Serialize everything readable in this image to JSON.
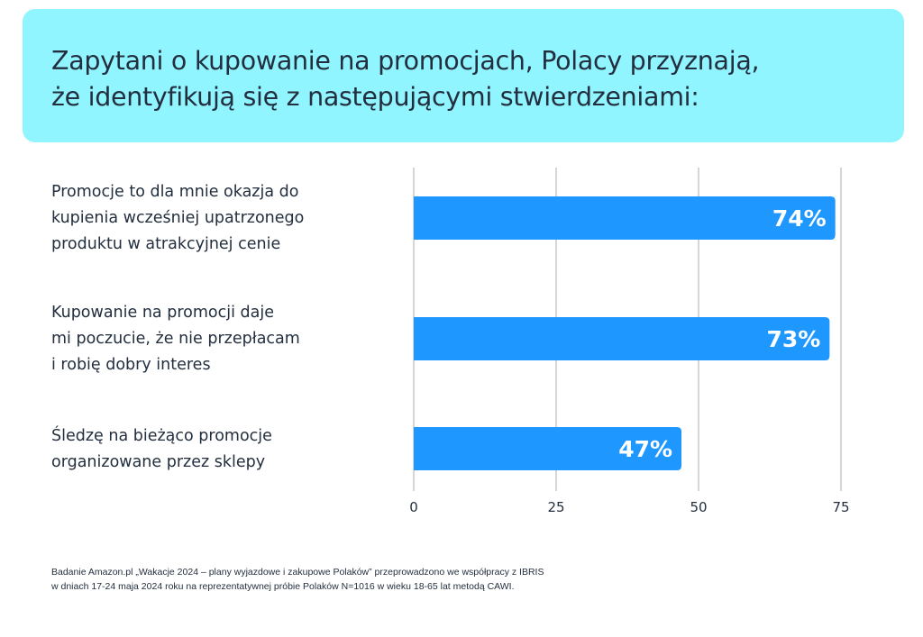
{
  "header": {
    "title_line1": "Zapytani o kupowanie na promocjach, Polacy przyznają,",
    "title_line2": "że identyfikują się z następującymi stwierdzeniami:"
  },
  "colors": {
    "header_bg": "#91f5ff",
    "bar": "#1e98ff",
    "text": "#232f3e",
    "grid": "#c8c8c8"
  },
  "chart_data": {
    "type": "bar",
    "orientation": "horizontal",
    "title": "Zapytani o kupowanie na promocjach, Polacy przyznają, że identyfikują się z następującymi stwierdzeniami:",
    "categories": [
      "Promocje to dla mnie okazja do\nkupienia wcześniej upatrzonego\nproduktu w atrakcyjnej cenie",
      "Kupowanie na promocji daje\nmi poczucie, że nie przepłacam\ni robię dobry interes",
      "Śledzę na bieżąco promocje\norganizowane przez sklepy"
    ],
    "values": [
      74,
      73,
      47
    ],
    "data_labels": [
      "74%",
      "73%",
      "47%"
    ],
    "xlabel": "",
    "ylabel": "",
    "xlim": [
      0,
      75
    ],
    "xticks": [
      0,
      25,
      50,
      75
    ],
    "xtick_labels": [
      "0",
      "25",
      "50",
      "75"
    ],
    "grid": true,
    "legend": "none"
  },
  "footnote": {
    "line1": "Badanie Amazon.pl „Wakacje 2024 – plany wyjazdowe i zakupowe Polaków” przeprowadzono we współpracy z IBRIS",
    "line2": "w dniach 17-24 maja 2024 roku na reprezentatywnej próbie Polaków N=1016 w wieku 18-65 lat metodą CAWI."
  }
}
